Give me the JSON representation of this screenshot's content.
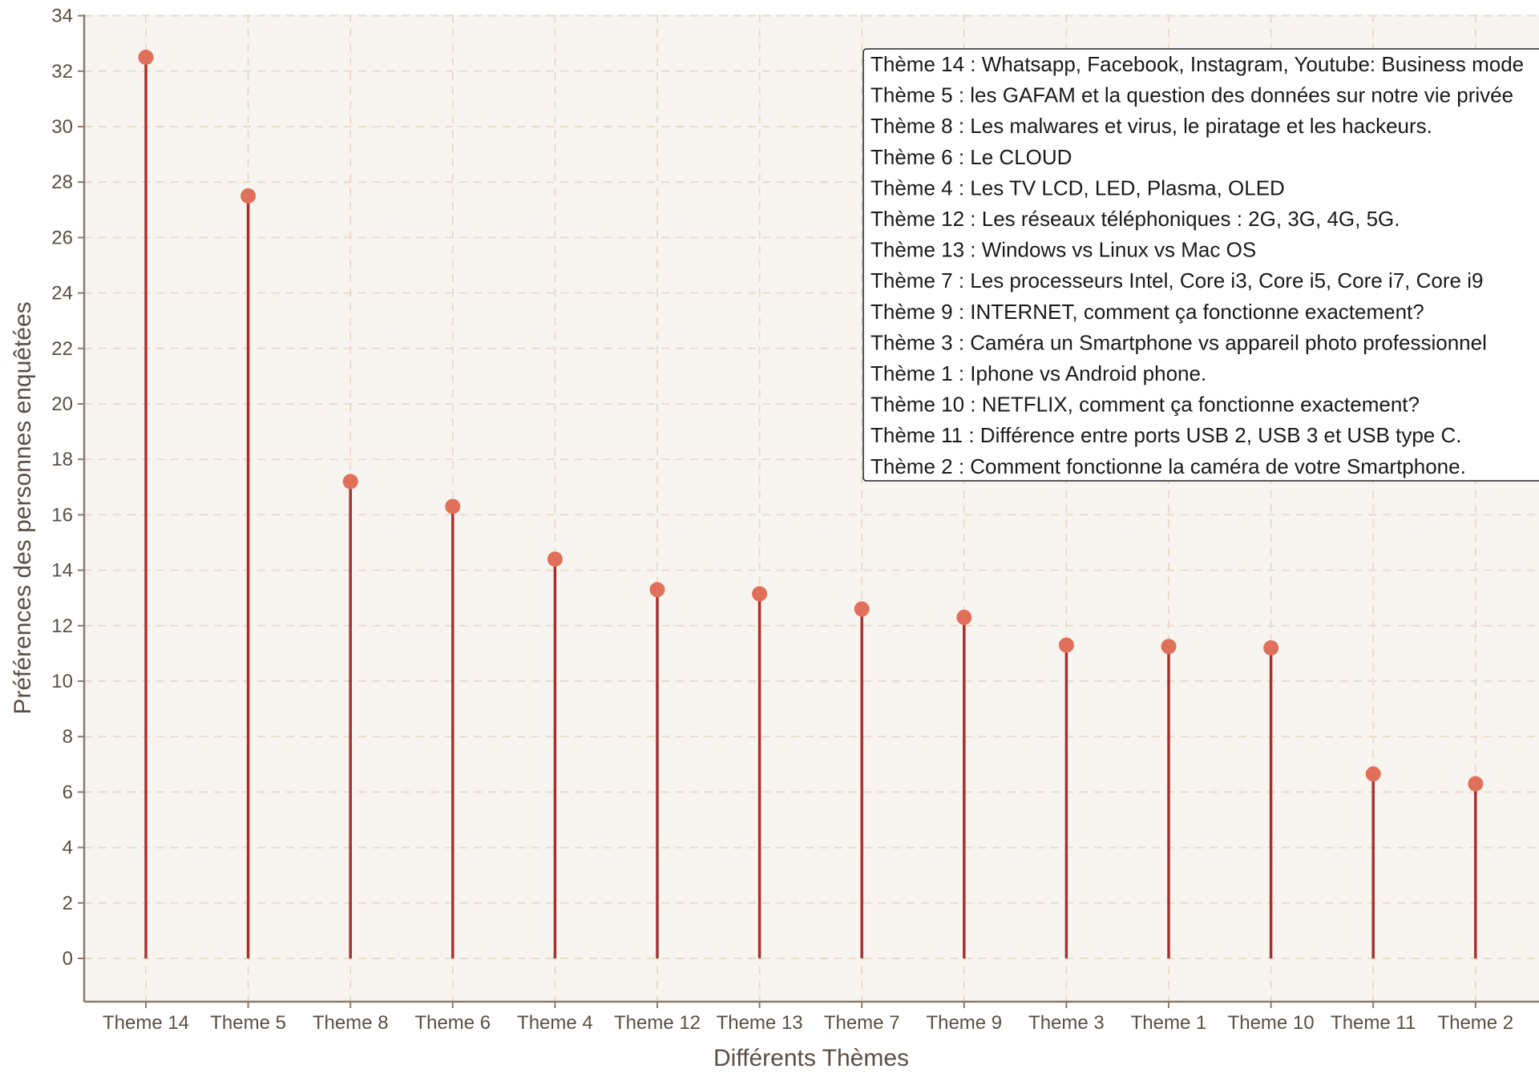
{
  "colors": {
    "panel_background": "#f8f5f0",
    "grid": "#e8dccb",
    "axis": "#8c7b6b",
    "stem": "#a8302f",
    "point": "#e0705a",
    "text": "#5a4f45"
  },
  "chart_data": {
    "type": "lollipop",
    "title": "",
    "xlabel": "Différents Thèmes",
    "ylabel": "Préférences des personnes enquêtées",
    "ylim": [
      -1.6,
      34
    ],
    "yticks": [
      0,
      2,
      4,
      6,
      8,
      10,
      12,
      14,
      16,
      18,
      20,
      22,
      24,
      26,
      28,
      30,
      32,
      34
    ],
    "grid": true,
    "legend_position": "top-right",
    "categories": [
      "Theme 14",
      "Theme 5",
      "Theme 8",
      "Theme 6",
      "Theme 4",
      "Theme 12",
      "Theme 13",
      "Theme 7",
      "Theme 9",
      "Theme 3",
      "Theme 1",
      "Theme 10",
      "Theme 11",
      "Theme 2"
    ],
    "values": [
      32.5,
      27.5,
      17.2,
      16.3,
      14.4,
      13.3,
      13.15,
      12.6,
      12.3,
      11.3,
      11.25,
      11.2,
      6.65,
      6.3
    ],
    "legend_entries": [
      "Thème 14 : Whatsapp, Facebook, Instagram, Youtube: Business mode",
      "Thème 5 : les GAFAM et la question des données sur notre vie privée",
      "Thème 8 : Les malwares et virus, le piratage et les hackeurs.",
      "Thème 6 : Le CLOUD",
      "Thème 4 : Les TV LCD, LED, Plasma, OLED",
      "Thème 12 : Les réseaux téléphoniques : 2G, 3G, 4G, 5G.",
      "Thème 13 : Windows vs Linux vs Mac OS",
      "Thème 7 : Les processeurs Intel, Core i3, Core i5, Core i7, Core i9",
      "Thème 9 : INTERNET, comment ça fonctionne exactement?",
      "Thème 3 : Caméra un Smartphone vs appareil photo professionnel",
      "Thème 1 : Iphone vs Android phone.",
      "Thème 10 : NETFLIX, comment ça fonctionne exactement?",
      "Thème 11 : Différence entre ports USB 2, USB 3 et USB type C.",
      "Thème 2 : Comment fonctionne la caméra de votre Smartphone."
    ]
  }
}
